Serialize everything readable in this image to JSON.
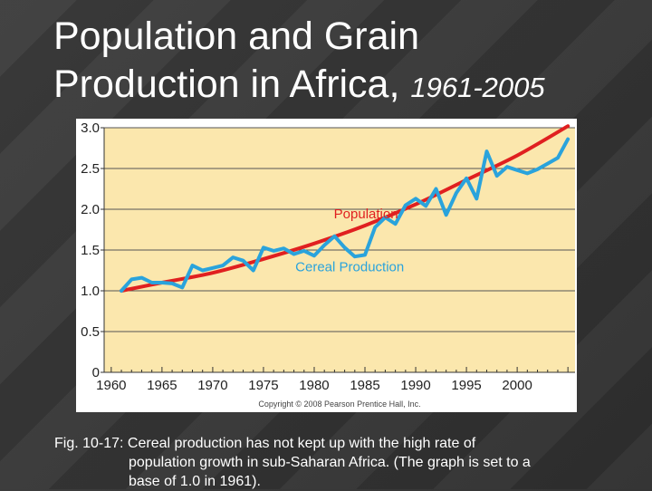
{
  "title": {
    "line1": "Population and Grain",
    "line2": "Production in Africa,",
    "years": "1961-2005"
  },
  "caption": {
    "line1": "Fig. 10-17: Cereal production has not kept up with the high rate of",
    "line2": "population growth in sub-Saharan Africa.  (The graph is set to a",
    "line3": "base of 1.0 in 1961)."
  },
  "colors": {
    "plot_background": "#fbe7ad",
    "population_line": "#e02020",
    "cereal_line": "#2aa3dc",
    "gridline": "#555555",
    "population_label": "#e02020",
    "cereal_label": "#2aa3dc"
  },
  "chart_data": {
    "type": "line",
    "title": "",
    "xlabel": "",
    "ylabel": "",
    "xlim": [
      1959.3,
      2005.7
    ],
    "ylim": [
      0,
      3.0
    ],
    "grid": true,
    "x_ticks": [
      1960,
      1965,
      1970,
      1975,
      1980,
      1985,
      1990,
      1995,
      2000
    ],
    "x_tick_labels": [
      "1960",
      "1965",
      "1970",
      "1975",
      "1980",
      "1985",
      "1990",
      "1995",
      "2000"
    ],
    "y_ticks": [
      0,
      0.5,
      1.0,
      1.5,
      2.0,
      2.5,
      3.0
    ],
    "y_tick_labels": [
      "0",
      "0.5",
      "1.0",
      "1.5",
      "2.0",
      "2.5",
      "3.0"
    ],
    "copyright": "Copyright © 2008 Pearson Prentice Hall, Inc.",
    "series": [
      {
        "name": "Population",
        "color": "#e02020",
        "x": [
          1961,
          1965,
          1970,
          1975,
          1980,
          1985,
          1990,
          1995,
          2000,
          2005
        ],
        "y": [
          1.0,
          1.1,
          1.22,
          1.39,
          1.58,
          1.8,
          2.06,
          2.36,
          2.66,
          3.02
        ]
      },
      {
        "name": "Cereal Production",
        "color": "#2aa3dc",
        "x": [
          1961,
          1962,
          1963,
          1964,
          1965,
          1966,
          1967,
          1968,
          1969,
          1970,
          1971,
          1972,
          1973,
          1974,
          1975,
          1976,
          1977,
          1978,
          1979,
          1980,
          1981,
          1982,
          1983,
          1984,
          1985,
          1986,
          1987,
          1988,
          1989,
          1990,
          1991,
          1992,
          1993,
          1994,
          1995,
          1996,
          1997,
          1998,
          1999,
          2000,
          2001,
          2002,
          2003,
          2004,
          2005
        ],
        "y": [
          1.0,
          1.14,
          1.16,
          1.1,
          1.1,
          1.09,
          1.04,
          1.31,
          1.25,
          1.28,
          1.31,
          1.41,
          1.37,
          1.25,
          1.53,
          1.49,
          1.52,
          1.45,
          1.49,
          1.43,
          1.56,
          1.67,
          1.53,
          1.42,
          1.44,
          1.78,
          1.9,
          1.82,
          2.05,
          2.13,
          2.04,
          2.25,
          1.93,
          2.2,
          2.38,
          2.13,
          2.71,
          2.41,
          2.52,
          2.48,
          2.44,
          2.49,
          2.56,
          2.63,
          2.86
        ]
      }
    ],
    "annotations": [
      {
        "text": "Population",
        "x": 1985.1,
        "y": 1.89,
        "color": "#e02020"
      },
      {
        "text": "Cereal Production",
        "x": 1983.5,
        "y": 1.24,
        "color": "#2aa3dc"
      }
    ]
  }
}
